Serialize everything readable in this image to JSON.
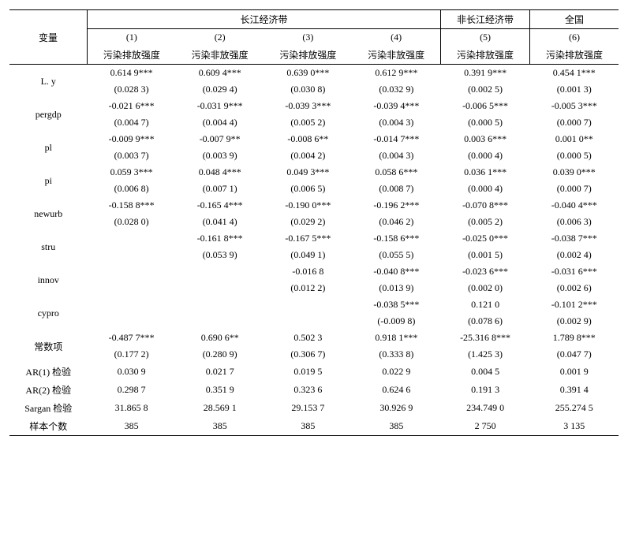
{
  "header": {
    "var": "变量",
    "groups": [
      "长江经济带",
      "非长江经济带",
      "全国"
    ],
    "cols": [
      {
        "num": "(1)",
        "label": "污染排放强度"
      },
      {
        "num": "(2)",
        "label": "污染非放强度"
      },
      {
        "num": "(3)",
        "label": "污染排放强度"
      },
      {
        "num": "(4)",
        "label": "污染非放强度"
      },
      {
        "num": "(5)",
        "label": "污染排放强度"
      },
      {
        "num": "(6)",
        "label": "污染排放强度"
      }
    ]
  },
  "rows": [
    {
      "name": "L. y",
      "coef": [
        "0.614 9***",
        "0.609 4***",
        "0.639 0***",
        "0.612 9***",
        "0.391 9***",
        "0.454 1***"
      ],
      "se": [
        "(0.028 3)",
        "(0.029 4)",
        "(0.030 8)",
        "(0.032 9)",
        "(0.002 5)",
        "(0.001 3)"
      ]
    },
    {
      "name": "pergdp",
      "coef": [
        "-0.021 6***",
        "-0.031 9***",
        "-0.039 3***",
        "-0.039 4***",
        "-0.006 5***",
        "-0.005 3***"
      ],
      "se": [
        "(0.004 7)",
        "(0.004 4)",
        "(0.005 2)",
        "(0.004 3)",
        "(0.000 5)",
        "(0.000 7)"
      ]
    },
    {
      "name": "pl",
      "coef": [
        "-0.009 9***",
        "-0.007 9**",
        "-0.008 6**",
        "-0.014 7***",
        "0.003 6***",
        "0.001 0**"
      ],
      "se": [
        "(0.003 7)",
        "(0.003 9)",
        "(0.004 2)",
        "(0.004 3)",
        "(0.000 4)",
        "(0.000 5)"
      ]
    },
    {
      "name": "pi",
      "coef": [
        "0.059 3***",
        "0.048 4***",
        "0.049 3***",
        "0.058 6***",
        "0.036 1***",
        "0.039 0***"
      ],
      "se": [
        "(0.006 8)",
        "(0.007 1)",
        "(0.006 5)",
        "(0.008 7)",
        "(0.000 4)",
        "(0.000 7)"
      ]
    },
    {
      "name": "newurb",
      "coef": [
        "-0.158 8***",
        "-0.165 4***",
        "-0.190 0***",
        "-0.196 2***",
        "-0.070 8***",
        "-0.040 4***"
      ],
      "se": [
        "(0.028 0)",
        "(0.041 4)",
        "(0.029 2)",
        "(0.046 2)",
        "(0.005 2)",
        "(0.006 3)"
      ]
    },
    {
      "name": "stru",
      "coef": [
        "",
        "-0.161 8***",
        "-0.167 5***",
        "-0.158 6***",
        "-0.025 0***",
        "-0.038 7***"
      ],
      "se": [
        "",
        "(0.053 9)",
        "(0.049 1)",
        "(0.055 5)",
        "(0.001 5)",
        "(0.002 4)"
      ]
    },
    {
      "name": "innov",
      "coef": [
        "",
        "",
        "-0.016 8",
        "-0.040 8***",
        "-0.023 6***",
        "-0.031 6***"
      ],
      "se": [
        "",
        "",
        "(0.012 2)",
        "(0.013 9)",
        "(0.002 0)",
        "(0.002 6)"
      ]
    },
    {
      "name": "cypro",
      "coef": [
        "",
        "",
        "",
        "-0.038 5***",
        "0.121 0",
        "-0.101 2***"
      ],
      "se": [
        "",
        "",
        "",
        "(-0.009 8)",
        "(0.078 6)",
        "(0.002 9)"
      ]
    },
    {
      "name": "常数项",
      "coef": [
        "-0.487 7***",
        "0.690 6**",
        "0.502 3",
        "0.918 1***",
        "-25.316 8***",
        "1.789 8***"
      ],
      "se": [
        "(0.177 2)",
        "(0.280 9)",
        "(0.306 7)",
        "(0.333 8)",
        "(1.425 3)",
        "(0.047 7)"
      ]
    }
  ],
  "tests": [
    {
      "name": "AR(1) 检验",
      "vals": [
        "0.030 9",
        "0.021 7",
        "0.019 5",
        "0.022 9",
        "0.004 5",
        "0.001 9"
      ]
    },
    {
      "name": "AR(2) 检验",
      "vals": [
        "0.298 7",
        "0.351 9",
        "0.323 6",
        "0.624 6",
        "0.191 3",
        "0.391 4"
      ]
    },
    {
      "name": "Sargan 检验",
      "vals": [
        "31.865 8",
        "28.569 1",
        "29.153 7",
        "30.926 9",
        "234.749 0",
        "255.274 5"
      ]
    },
    {
      "name": "样本个数",
      "vals": [
        "385",
        "385",
        "385",
        "385",
        "2 750",
        "3 135"
      ]
    }
  ]
}
